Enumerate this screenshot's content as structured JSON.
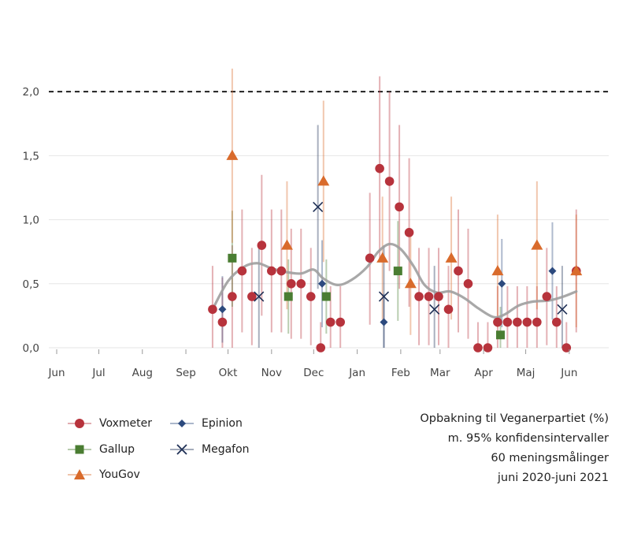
{
  "chart_data": {
    "type": "scatter",
    "x_axis_labels": [
      "Jun",
      "Jul",
      "Aug",
      "Sep",
      "Okt",
      "Nov",
      "Dec",
      "Jan",
      "Feb",
      "Mar",
      "Apr",
      "Maj",
      "Jun"
    ],
    "x_range": [
      "2020-06-01",
      "2021-06-28"
    ],
    "y_ticks": [
      "0,0",
      "0,5",
      "1,0",
      "1,5",
      "2,0"
    ],
    "ylim": [
      0,
      2.1
    ],
    "reference_line": {
      "y": 2.0,
      "style": "dashed",
      "color": "#000000"
    },
    "grid": "horizontal",
    "legend_position": "bottom-left",
    "series": [
      {
        "name": "Voxmeter",
        "marker": "circle",
        "color": "#b7333c",
        "points": [
          {
            "x": "2020-09-20",
            "y": 0.3,
            "lo": 0.0,
            "hi": 0.64
          },
          {
            "x": "2020-09-27",
            "y": 0.2,
            "lo": 0.0,
            "hi": 0.55
          },
          {
            "x": "2020-10-04",
            "y": 0.4,
            "lo": 0.0,
            "hi": 0.8
          },
          {
            "x": "2020-10-11",
            "y": 0.6,
            "lo": 0.12,
            "hi": 1.08
          },
          {
            "x": "2020-10-18",
            "y": 0.4,
            "lo": 0.02,
            "hi": 0.78
          },
          {
            "x": "2020-10-25",
            "y": 0.8,
            "lo": 0.25,
            "hi": 1.35
          },
          {
            "x": "2020-11-01",
            "y": 0.6,
            "lo": 0.12,
            "hi": 1.08
          },
          {
            "x": "2020-11-08",
            "y": 0.6,
            "lo": 0.12,
            "hi": 1.08
          },
          {
            "x": "2020-11-15",
            "y": 0.5,
            "lo": 0.07,
            "hi": 0.93
          },
          {
            "x": "2020-11-22",
            "y": 0.5,
            "lo": 0.07,
            "hi": 0.93
          },
          {
            "x": "2020-11-29",
            "y": 0.4,
            "lo": 0.02,
            "hi": 0.78
          },
          {
            "x": "2020-12-06",
            "y": 0.0,
            "lo": 0.0,
            "hi": 0.2
          },
          {
            "x": "2020-12-13",
            "y": 0.2,
            "lo": 0.0,
            "hi": 0.48
          },
          {
            "x": "2020-12-20",
            "y": 0.2,
            "lo": 0.0,
            "hi": 0.48
          },
          {
            "x": "2021-01-10",
            "y": 0.7,
            "lo": 0.18,
            "hi": 1.21
          },
          {
            "x": "2021-01-17",
            "y": 1.4,
            "lo": 0.68,
            "hi": 2.12
          },
          {
            "x": "2021-01-24",
            "y": 1.3,
            "lo": 0.6,
            "hi": 2.0
          },
          {
            "x": "2021-01-31",
            "y": 1.1,
            "lo": 0.46,
            "hi": 1.74
          },
          {
            "x": "2021-02-07",
            "y": 0.9,
            "lo": 0.32,
            "hi": 1.48
          },
          {
            "x": "2021-02-14",
            "y": 0.4,
            "lo": 0.02,
            "hi": 0.78
          },
          {
            "x": "2021-02-21",
            "y": 0.4,
            "lo": 0.02,
            "hi": 0.78
          },
          {
            "x": "2021-02-28",
            "y": 0.4,
            "lo": 0.02,
            "hi": 0.78
          },
          {
            "x": "2021-03-07",
            "y": 0.3,
            "lo": 0.0,
            "hi": 0.64
          },
          {
            "x": "2021-03-14",
            "y": 0.6,
            "lo": 0.12,
            "hi": 1.08
          },
          {
            "x": "2021-03-21",
            "y": 0.5,
            "lo": 0.07,
            "hi": 0.93
          },
          {
            "x": "2021-03-28",
            "y": 0.0,
            "lo": 0.0,
            "hi": 0.2
          },
          {
            "x": "2021-04-04",
            "y": 0.0,
            "lo": 0.0,
            "hi": 0.2
          },
          {
            "x": "2021-04-11",
            "y": 0.2,
            "lo": 0.0,
            "hi": 0.48
          },
          {
            "x": "2021-04-18",
            "y": 0.2,
            "lo": 0.0,
            "hi": 0.48
          },
          {
            "x": "2021-04-25",
            "y": 0.2,
            "lo": 0.0,
            "hi": 0.48
          },
          {
            "x": "2021-05-02",
            "y": 0.2,
            "lo": 0.0,
            "hi": 0.48
          },
          {
            "x": "2021-05-09",
            "y": 0.2,
            "lo": 0.0,
            "hi": 0.48
          },
          {
            "x": "2021-05-16",
            "y": 0.4,
            "lo": 0.02,
            "hi": 0.78
          },
          {
            "x": "2021-05-23",
            "y": 0.2,
            "lo": 0.0,
            "hi": 0.48
          },
          {
            "x": "2021-05-30",
            "y": 0.0,
            "lo": 0.0,
            "hi": 0.2
          },
          {
            "x": "2021-06-06",
            "y": 0.6,
            "lo": 0.12,
            "hi": 1.08
          }
        ]
      },
      {
        "name": "Gallup",
        "marker": "square",
        "color": "#4a7d32",
        "points": [
          {
            "x": "2020-10-04",
            "y": 0.7,
            "lo": 0.32,
            "hi": 1.07
          },
          {
            "x": "2020-11-13",
            "y": 0.4,
            "lo": 0.11,
            "hi": 0.69
          },
          {
            "x": "2020-12-10",
            "y": 0.4,
            "lo": 0.11,
            "hi": 0.69
          },
          {
            "x": "2021-01-30",
            "y": 0.6,
            "lo": 0.21,
            "hi": 0.99
          },
          {
            "x": "2021-04-13",
            "y": 0.1,
            "lo": 0.0,
            "hi": 0.32
          }
        ]
      },
      {
        "name": "YouGov",
        "marker": "triangle",
        "color": "#d96b2c",
        "points": [
          {
            "x": "2020-10-04",
            "y": 1.5,
            "lo": 0.82,
            "hi": 2.18
          },
          {
            "x": "2020-11-12",
            "y": 0.8,
            "lo": 0.3,
            "hi": 1.3
          },
          {
            "x": "2020-12-08",
            "y": 1.3,
            "lo": 0.67,
            "hi": 1.93
          },
          {
            "x": "2021-01-19",
            "y": 0.7,
            "lo": 0.22,
            "hi": 1.18
          },
          {
            "x": "2021-02-08",
            "y": 0.5,
            "lo": 0.1,
            "hi": 0.9
          },
          {
            "x": "2021-03-09",
            "y": 0.7,
            "lo": 0.22,
            "hi": 1.18
          },
          {
            "x": "2021-04-11",
            "y": 0.6,
            "lo": 0.16,
            "hi": 1.04
          },
          {
            "x": "2021-05-09",
            "y": 0.8,
            "lo": 0.3,
            "hi": 1.3
          },
          {
            "x": "2021-06-06",
            "y": 0.6,
            "lo": 0.16,
            "hi": 1.04
          }
        ]
      },
      {
        "name": "Epinion",
        "marker": "diamond",
        "color": "#2c4a7e",
        "points": [
          {
            "x": "2020-09-27",
            "y": 0.3,
            "lo": 0.04,
            "hi": 0.56
          },
          {
            "x": "2020-12-07",
            "y": 0.5,
            "lo": 0.16,
            "hi": 0.84
          },
          {
            "x": "2021-01-20",
            "y": 0.2,
            "lo": 0.0,
            "hi": 0.42
          },
          {
            "x": "2021-04-14",
            "y": 0.5,
            "lo": 0.16,
            "hi": 0.85
          },
          {
            "x": "2021-05-20",
            "y": 0.6,
            "lo": 0.22,
            "hi": 0.98
          }
        ]
      },
      {
        "name": "Megafon",
        "marker": "x",
        "color": "#1e2f55",
        "points": [
          {
            "x": "2020-10-23",
            "y": 0.4,
            "lo": 0.0,
            "hi": 0.8
          },
          {
            "x": "2020-12-04",
            "y": 1.1,
            "lo": 0.46,
            "hi": 1.74
          },
          {
            "x": "2021-01-20",
            "y": 0.4,
            "lo": 0.0,
            "hi": 0.8
          },
          {
            "x": "2021-02-25",
            "y": 0.3,
            "lo": 0.0,
            "hi": 0.64
          },
          {
            "x": "2021-05-27",
            "y": 0.3,
            "lo": 0.0,
            "hi": 0.64
          }
        ]
      }
    ],
    "trend": {
      "color": "#9e9e9e",
      "points": [
        {
          "x": "2020-09-20",
          "y": 0.3
        },
        {
          "x": "2020-10-01",
          "y": 0.52
        },
        {
          "x": "2020-10-12",
          "y": 0.63
        },
        {
          "x": "2020-10-22",
          "y": 0.66
        },
        {
          "x": "2020-11-01",
          "y": 0.62
        },
        {
          "x": "2020-11-12",
          "y": 0.59
        },
        {
          "x": "2020-11-22",
          "y": 0.58
        },
        {
          "x": "2020-12-01",
          "y": 0.61
        },
        {
          "x": "2020-12-08",
          "y": 0.54
        },
        {
          "x": "2020-12-18",
          "y": 0.49
        },
        {
          "x": "2020-12-28",
          "y": 0.53
        },
        {
          "x": "2021-01-08",
          "y": 0.63
        },
        {
          "x": "2021-01-16",
          "y": 0.75
        },
        {
          "x": "2021-01-24",
          "y": 0.81
        },
        {
          "x": "2021-02-01",
          "y": 0.77
        },
        {
          "x": "2021-02-10",
          "y": 0.64
        },
        {
          "x": "2021-02-18",
          "y": 0.49
        },
        {
          "x": "2021-02-27",
          "y": 0.43
        },
        {
          "x": "2021-03-08",
          "y": 0.44
        },
        {
          "x": "2021-03-18",
          "y": 0.39
        },
        {
          "x": "2021-03-28",
          "y": 0.31
        },
        {
          "x": "2021-04-08",
          "y": 0.24
        },
        {
          "x": "2021-04-16",
          "y": 0.26
        },
        {
          "x": "2021-04-26",
          "y": 0.33
        },
        {
          "x": "2021-05-06",
          "y": 0.36
        },
        {
          "x": "2021-05-18",
          "y": 0.37
        },
        {
          "x": "2021-05-28",
          "y": 0.4
        },
        {
          "x": "2021-06-06",
          "y": 0.44
        }
      ]
    }
  },
  "caption": {
    "line1": "Opbakning til Veganerpartiet (%)",
    "line2": "m. 95% konfidensintervaller",
    "line3": "60 meningsmålinger",
    "line4": "juni 2020-juni 2021"
  }
}
